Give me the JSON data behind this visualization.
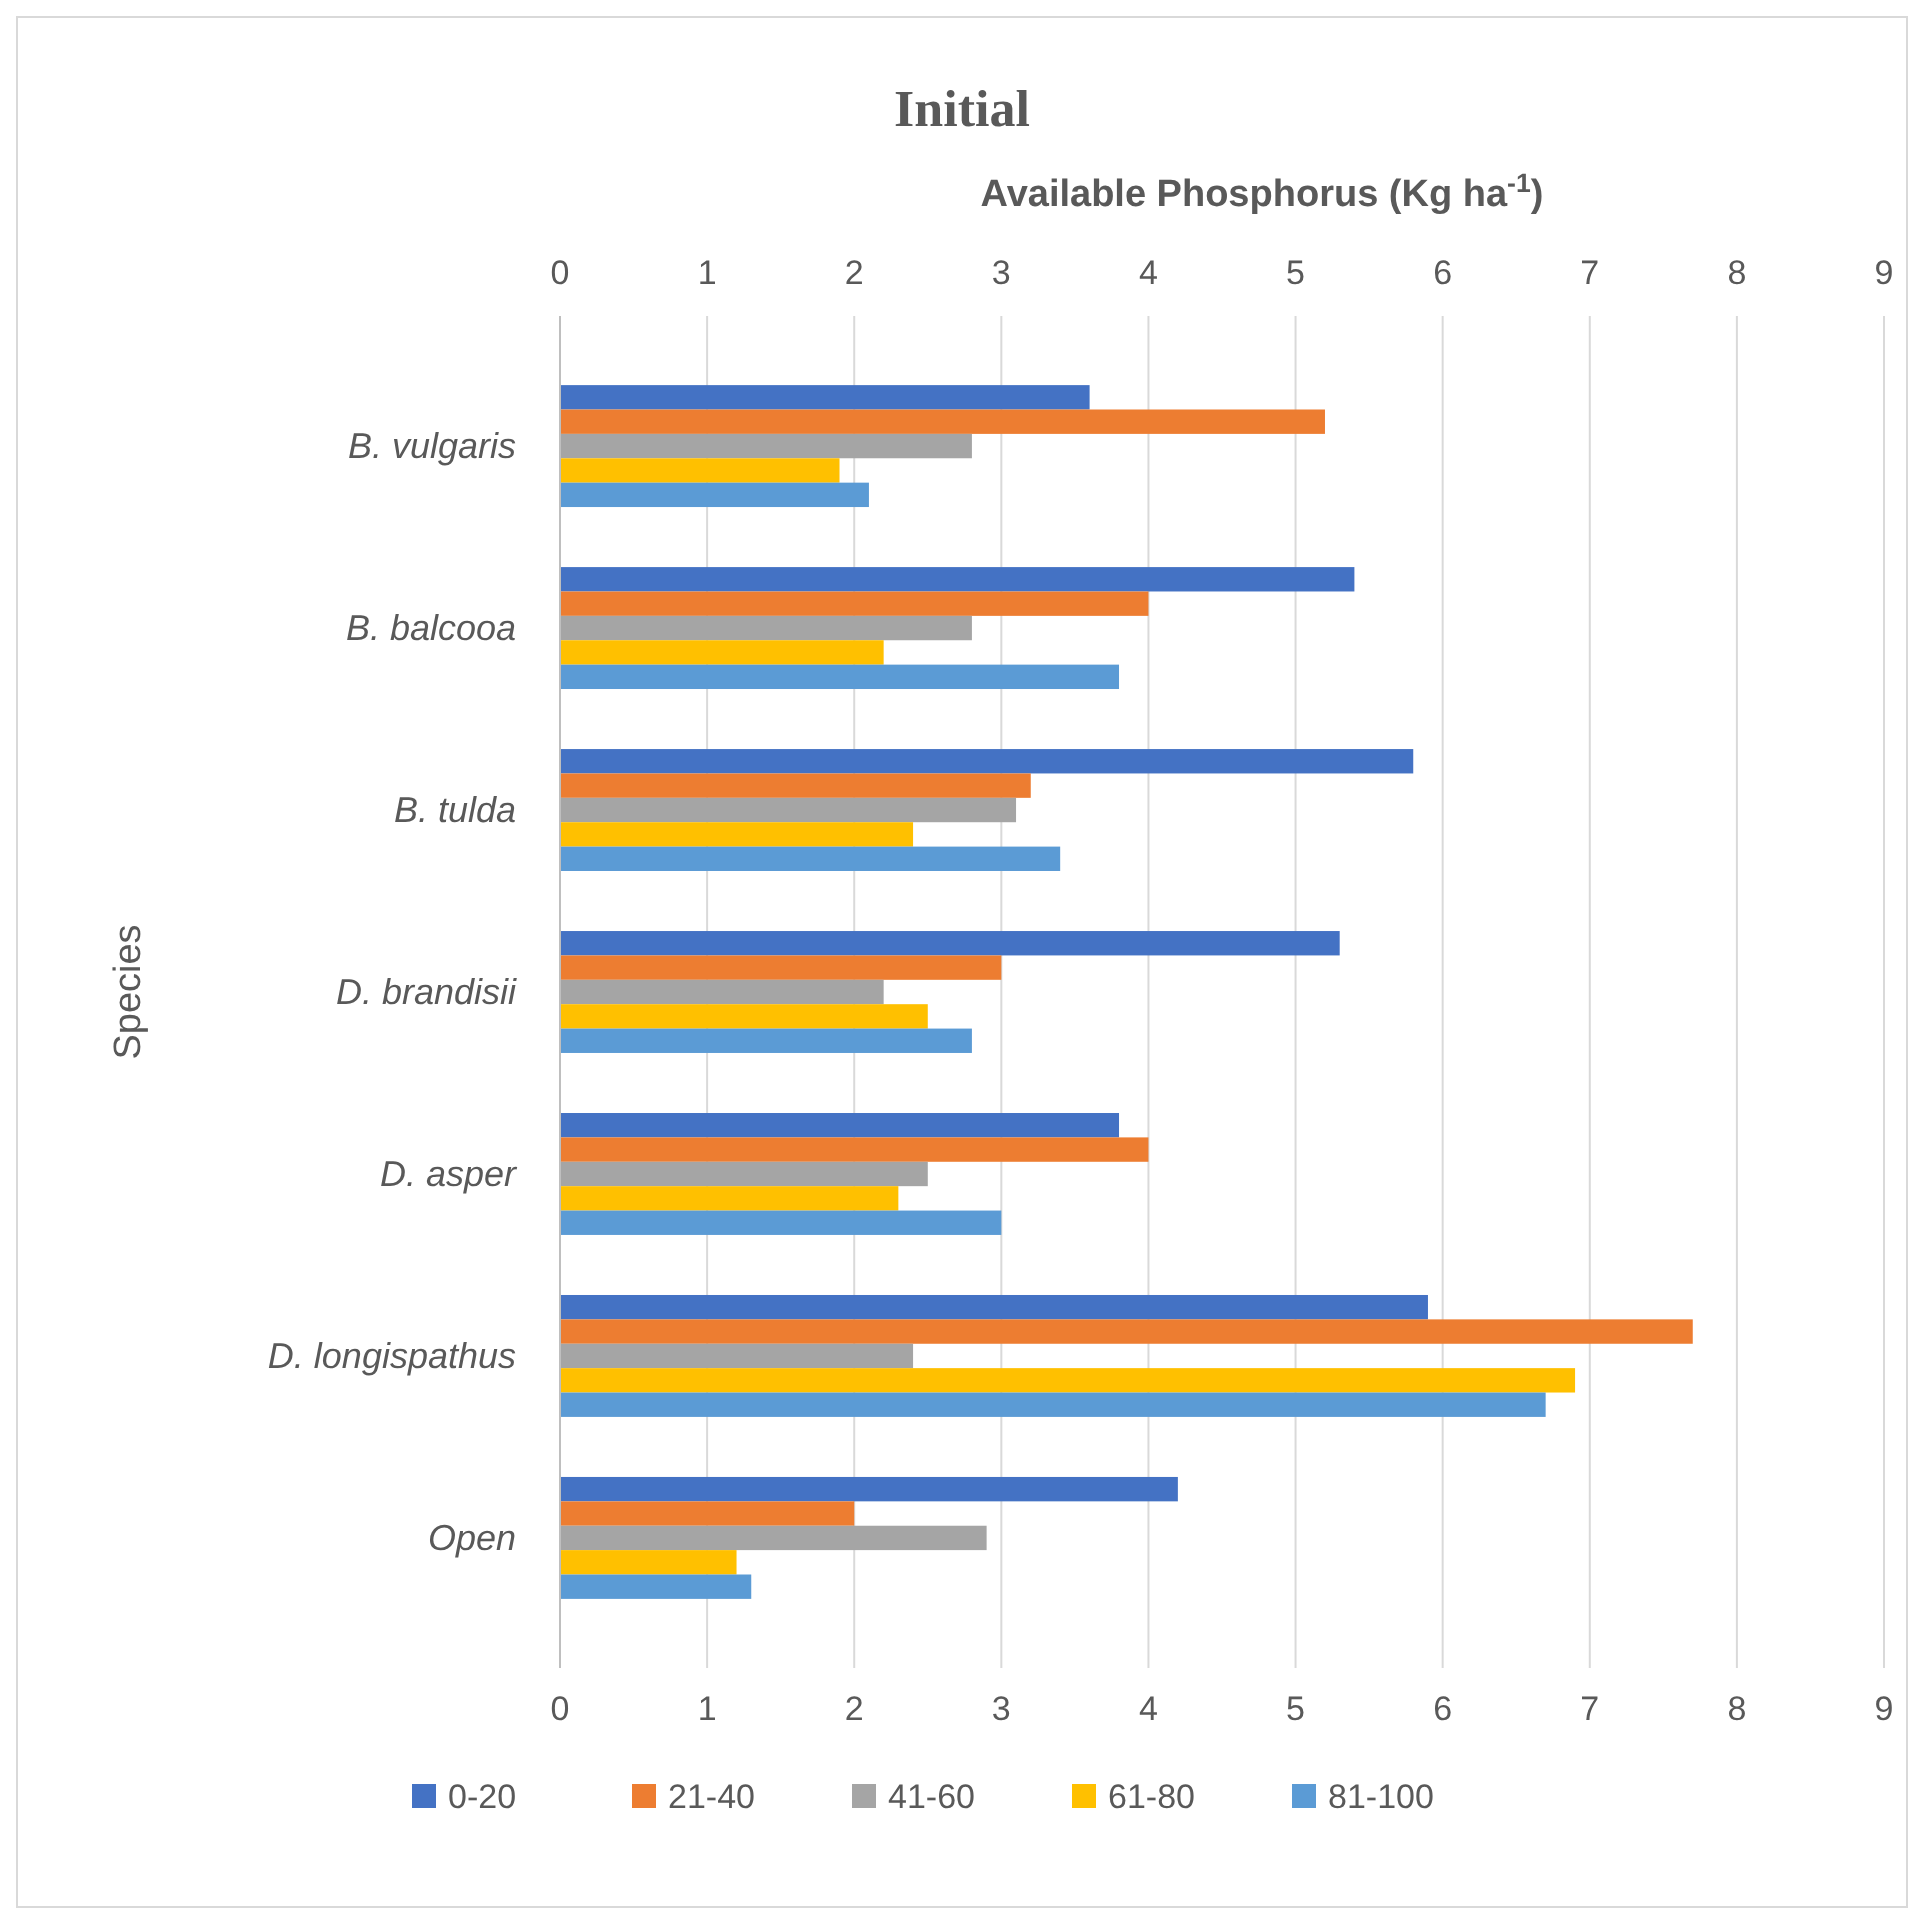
{
  "chart_data": {
    "type": "bar",
    "orientation": "horizontal",
    "title": "Initial",
    "xlabel": "Available Phosphorus (Kg ha$^{-1}$)",
    "ylabel": "Species",
    "categories": [
      "B. vulgaris",
      "B. balcooa",
      "B. tulda",
      "D. brandisii",
      "D. asper",
      "D. longispathus",
      "Open"
    ],
    "series": [
      {
        "name": "0-20",
        "color": "#4472c4",
        "values": [
          3.6,
          5.4,
          5.8,
          5.3,
          3.8,
          5.9,
          4.2
        ]
      },
      {
        "name": "21-40",
        "color": "#ed7d31",
        "values": [
          5.2,
          4.0,
          3.2,
          3.0,
          4.0,
          7.7,
          2.0
        ]
      },
      {
        "name": "41-60",
        "color": "#a5a5a5",
        "values": [
          2.8,
          2.8,
          3.1,
          2.2,
          2.5,
          2.4,
          2.9
        ]
      },
      {
        "name": "61-80",
        "color": "#ffc000",
        "values": [
          1.9,
          2.2,
          2.4,
          2.5,
          2.3,
          6.9,
          1.2
        ]
      },
      {
        "name": "81-100",
        "color": "#5b9bd5",
        "values": [
          2.1,
          3.8,
          3.4,
          2.8,
          3.0,
          6.7,
          1.3
        ]
      }
    ],
    "xlim": [
      0,
      9
    ],
    "xticks": [
      0,
      1,
      2,
      3,
      4,
      5,
      6,
      7,
      8,
      9
    ],
    "x2lim": [
      0,
      9
    ],
    "x2ticks": [
      0,
      1,
      2,
      3,
      4,
      5,
      6,
      7,
      8,
      9
    ],
    "grid": "x",
    "legend": "bottom"
  }
}
